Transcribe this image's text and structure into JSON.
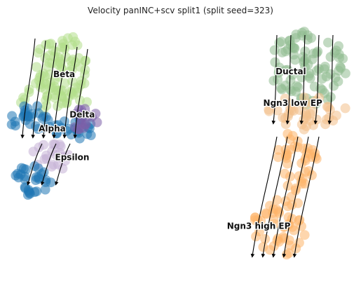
{
  "title": "Velocity panINC+scv split1 (split seed=323)",
  "chart_data": {
    "type": "scatter",
    "title": "Velocity panINC+scv split1 (split seed=323)",
    "xlabel": "",
    "ylabel": "",
    "axes_visible": false,
    "grid": false,
    "legend": "none (cluster names drawn on the embedding)",
    "overlay": "RNA velocity streamlines with arrowheads",
    "clusters": [
      {
        "name": "Beta",
        "color": "#b2de8a",
        "cx": 3.2,
        "cy": 7.3
      },
      {
        "name": "Delta",
        "color": "#7b5ea8",
        "cx": 4.1,
        "cy": 5.9
      },
      {
        "name": "Alpha",
        "color": "#1f77b4",
        "cx": 2.6,
        "cy": 5.4
      },
      {
        "name": "Epsilon",
        "color": "#c5b0d5",
        "cx": 3.6,
        "cy": 4.4
      },
      {
        "name": "Ductal",
        "color": "#8fbc8f",
        "cx": 14.5,
        "cy": 7.4
      },
      {
        "name": "Ngn3 low EP",
        "color": "#f3c08b",
        "cx": 14.6,
        "cy": 6.3
      },
      {
        "name": "Ngn3 high EP",
        "color": "#fdb46a",
        "cx": 12.9,
        "cy": 2.0
      }
    ],
    "xlim": [
      0,
      18
    ],
    "ylim": [
      0,
      10
    ]
  }
}
